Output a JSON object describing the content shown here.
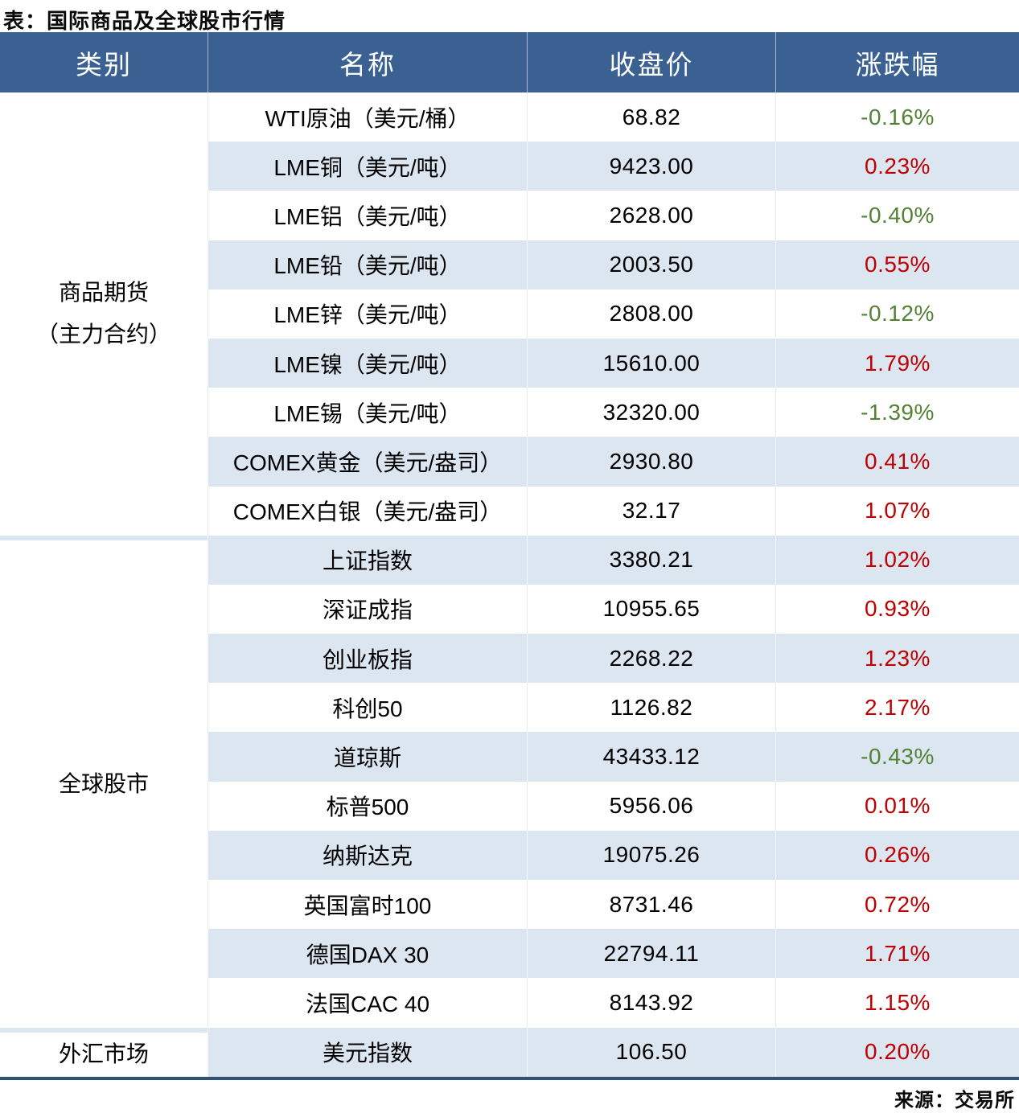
{
  "title": "表：国际商品及全球股市行情",
  "source": "来源：交易所",
  "colors": {
    "header_bg": "#3A6191",
    "stripe": "#DCE6F1",
    "up": "#C00000",
    "down": "#548235",
    "bottom_border": "#2F5376"
  },
  "table": {
    "headers": {
      "category": "类别",
      "name": "名称",
      "close": "收盘价",
      "change": "涨跌幅"
    },
    "sections": [
      {
        "category_line1": "商品期货",
        "category_line2": "（主力合约）",
        "row_span": 9
      },
      {
        "category_line1": "全球股市",
        "row_span": 10
      },
      {
        "category_line1": "外汇市场",
        "row_span": 1
      }
    ],
    "rows": [
      {
        "name": "WTI原油（美元/桶）",
        "close": "68.82",
        "change": "-0.16%"
      },
      {
        "name": "LME铜（美元/吨）",
        "close": "9423.00",
        "change": "0.23%"
      },
      {
        "name": "LME铝（美元/吨）",
        "close": "2628.00",
        "change": "-0.40%"
      },
      {
        "name": "LME铅（美元/吨）",
        "close": "2003.50",
        "change": "0.55%"
      },
      {
        "name": "LME锌（美元/吨）",
        "close": "2808.00",
        "change": "-0.12%"
      },
      {
        "name": "LME镍（美元/吨）",
        "close": "15610.00",
        "change": "1.79%"
      },
      {
        "name": "LME锡（美元/吨）",
        "close": "32320.00",
        "change": "-1.39%"
      },
      {
        "name": "COMEX黄金（美元/盎司）",
        "close": "2930.80",
        "change": "0.41%"
      },
      {
        "name": "COMEX白银（美元/盎司）",
        "close": "32.17",
        "change": "1.07%"
      },
      {
        "name": "上证指数",
        "close": "3380.21",
        "change": "1.02%"
      },
      {
        "name": "深证成指",
        "close": "10955.65",
        "change": "0.93%"
      },
      {
        "name": "创业板指",
        "close": "2268.22",
        "change": "1.23%"
      },
      {
        "name": "科创50",
        "close": "1126.82",
        "change": "2.17%"
      },
      {
        "name": "道琼斯",
        "close": "43433.12",
        "change": "-0.43%"
      },
      {
        "name": "标普500",
        "close": "5956.06",
        "change": "0.01%"
      },
      {
        "name": "纳斯达克",
        "close": "19075.26",
        "change": "0.26%"
      },
      {
        "name": "英国富时100",
        "close": "8731.46",
        "change": "0.72%"
      },
      {
        "name": "德国DAX 30",
        "close": "22794.11",
        "change": "1.71%"
      },
      {
        "name": "法国CAC 40",
        "close": "8143.92",
        "change": "1.15%"
      },
      {
        "name": "美元指数",
        "close": "106.50",
        "change": "0.20%"
      }
    ]
  }
}
